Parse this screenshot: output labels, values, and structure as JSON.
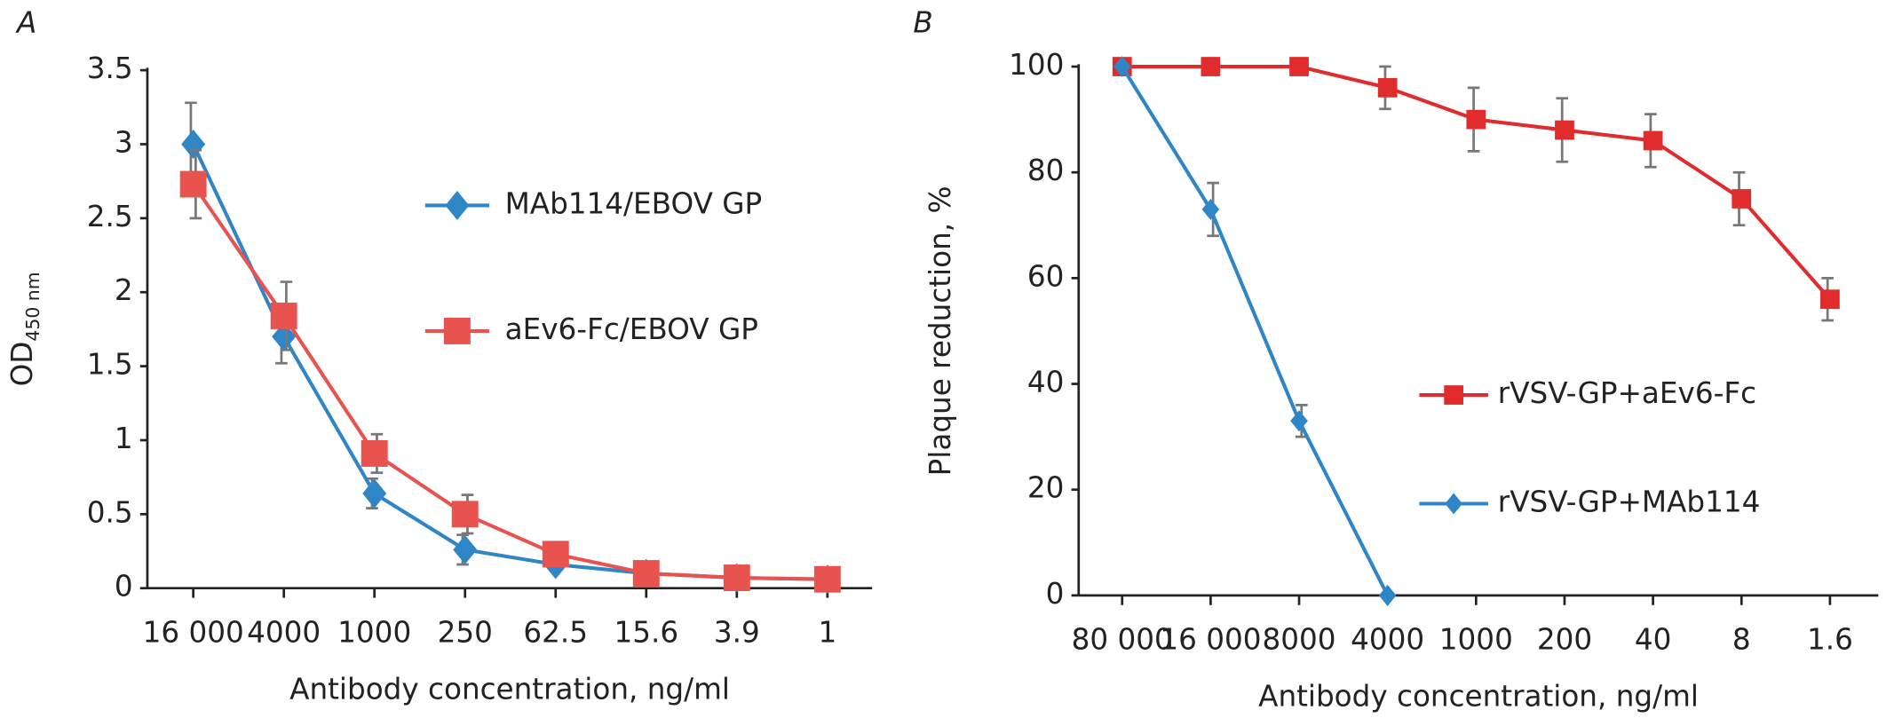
{
  "chart_data": [
    {
      "type": "line",
      "label": "A",
      "x_label": "Antibody concentration, ng/ml",
      "y_label": "OD",
      "y_label_sub": "450 nm",
      "categories": [
        "16 000",
        "4000",
        "1000",
        "250",
        "62.5",
        "15.6",
        "3.9",
        "1"
      ],
      "ylim": [
        0,
        3.5
      ],
      "yticks": [
        0,
        0.5,
        1,
        1.5,
        2,
        2.5,
        3,
        3.5
      ],
      "series": [
        {
          "name": "MAb114/EBOV GP",
          "color": "#2f86c6",
          "marker": "diamond",
          "values": [
            3.0,
            1.7,
            0.64,
            0.26,
            0.16,
            0.1,
            0.07,
            0.06
          ],
          "errors": [
            0.28,
            0.18,
            0.1,
            0.1,
            null,
            null,
            null,
            null
          ]
        },
        {
          "name": "aEv6-Fc/EBOV GP",
          "color": "#e8534f",
          "marker": "square",
          "values": [
            2.73,
            1.84,
            0.91,
            0.5,
            0.23,
            0.1,
            0.07,
            0.06
          ],
          "errors": [
            0.23,
            0.23,
            0.13,
            0.13,
            null,
            null,
            null,
            null
          ]
        }
      ]
    },
    {
      "type": "line",
      "label": "B",
      "x_label": "Antibody concentration, ng/ml",
      "y_label": "Plaque reduction, %",
      "categories": [
        "80 000",
        "16 000",
        "8000",
        "4000",
        "1000",
        "200",
        "40",
        "8",
        "1.6"
      ],
      "ylim": [
        0,
        100
      ],
      "yticks": [
        0,
        20,
        40,
        60,
        80,
        100
      ],
      "series": [
        {
          "name": "rVSV-GP+aEv6-Fc",
          "color": "#e02c2c",
          "marker": "square",
          "values": [
            100,
            100,
            100,
            96,
            90,
            88,
            86,
            75,
            56
          ],
          "errors": [
            null,
            null,
            null,
            4,
            6,
            6,
            5,
            5,
            4
          ]
        },
        {
          "name": "rVSV-GP+MAb114",
          "color": "#2f86c6",
          "marker": "diamond",
          "values": [
            100,
            73,
            33,
            0,
            null,
            null,
            null,
            null,
            null
          ],
          "errors": [
            null,
            5,
            3,
            null,
            null,
            null,
            null,
            null,
            null
          ]
        }
      ]
    }
  ]
}
